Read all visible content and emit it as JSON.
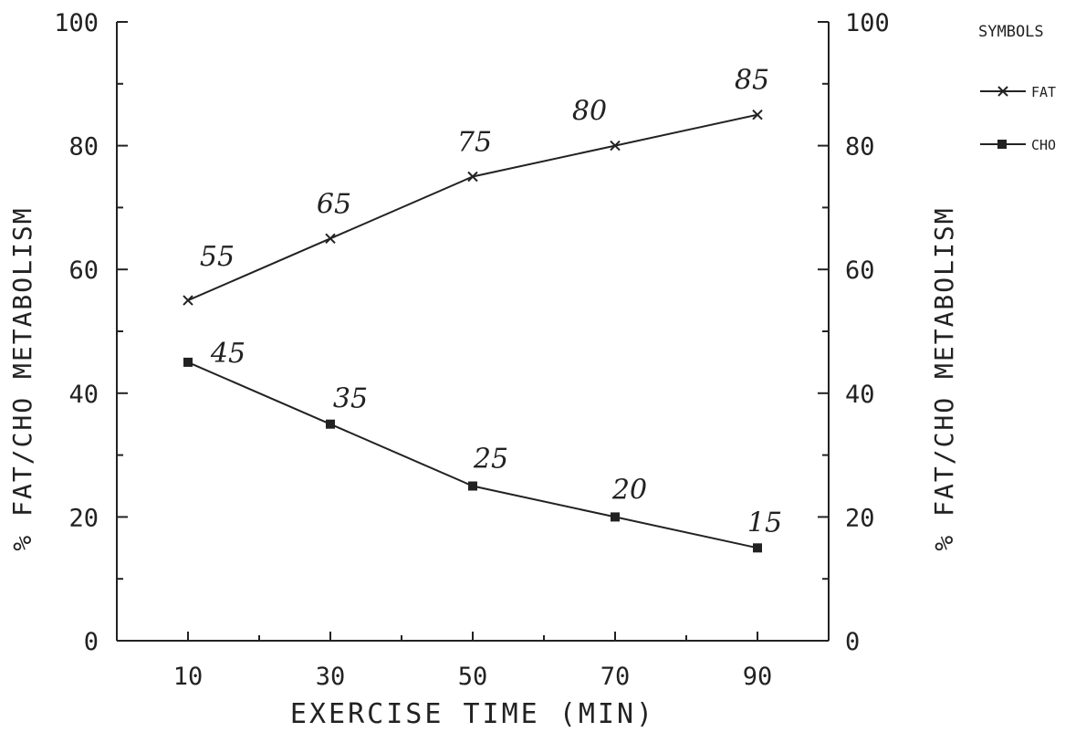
{
  "chart_data": {
    "type": "line",
    "xlabel": "EXERCISE TIME (MIN)",
    "ylabel_left": "% FAT/CHO METABOLISM",
    "ylabel_right": "% FAT/CHO METABOLISM",
    "x_ticks": [
      "10",
      "30",
      "50",
      "70",
      "90"
    ],
    "y_ticks": [
      "0",
      "20",
      "40",
      "60",
      "80",
      "100"
    ],
    "xlim": [
      0,
      100
    ],
    "ylim": [
      0,
      100
    ],
    "grid": false,
    "legend": {
      "title": "SYMBOLS",
      "placement": "top-right",
      "entries": [
        {
          "label": "FAT",
          "marker": "x"
        },
        {
          "label": "CHO",
          "marker": "filled-square"
        }
      ]
    },
    "x": [
      10,
      30,
      50,
      70,
      90
    ],
    "series": [
      {
        "name": "FAT",
        "marker": "x",
        "values": [
          55,
          65,
          75,
          80,
          85
        ],
        "annotations": [
          "55",
          "65",
          "75",
          "80",
          "85"
        ]
      },
      {
        "name": "CHO",
        "marker": "filled-square",
        "values": [
          45,
          35,
          25,
          20,
          15
        ],
        "annotations": [
          "45",
          "35",
          "25",
          "20",
          "15"
        ]
      }
    ]
  }
}
